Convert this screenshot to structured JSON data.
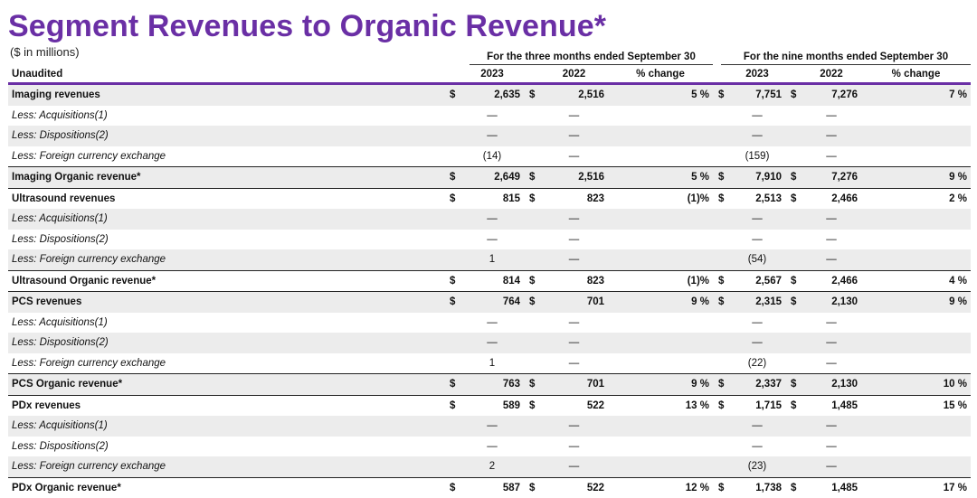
{
  "header": {
    "title": "Segment Revenues to Organic Revenue*",
    "subtitle": "($ in millions)",
    "group_three": "For the three months ended September 30",
    "group_nine": "For the nine months ended September 30",
    "unaudited": "Unaudited",
    "col_2023": "2023",
    "col_2022": "2022",
    "col_pct": "% change"
  },
  "rows": [
    {
      "label": "Imaging revenues",
      "d1": "$",
      "v1": "2,635",
      "d2": "$",
      "v2": "2,516",
      "p1": "5 %",
      "d3": "$",
      "v3": "7,751",
      "d4": "$",
      "v4": "7,276",
      "p2": "7 %"
    },
    {
      "label": "Less: Acquisitions(1)",
      "v1": "—",
      "v2": "—",
      "v3": "—",
      "v4": "—"
    },
    {
      "label": "Less: Dispositions(2)",
      "v1": "—",
      "v2": "—",
      "v3": "—",
      "v4": "—"
    },
    {
      "label": "Less: Foreign currency exchange",
      "v1": "(14)",
      "v2": "—",
      "v3": "(159)",
      "v4": "—"
    },
    {
      "label": "Imaging Organic revenue*",
      "d1": "$",
      "v1": "2,649",
      "d2": "$",
      "v2": "2,516",
      "p1": "5 %",
      "d3": "$",
      "v3": "7,910",
      "d4": "$",
      "v4": "7,276",
      "p2": "9 %"
    },
    {
      "label": "Ultrasound revenues",
      "d1": "$",
      "v1": "815",
      "d2": "$",
      "v2": "823",
      "p1": "(1)%",
      "d3": "$",
      "v3": "2,513",
      "d4": "$",
      "v4": "2,466",
      "p2": "2 %"
    },
    {
      "label": "Less: Acquisitions(1)",
      "v1": "—",
      "v2": "—",
      "v3": "—",
      "v4": "—"
    },
    {
      "label": "Less: Dispositions(2)",
      "v1": "—",
      "v2": "—",
      "v3": "—",
      "v4": "—"
    },
    {
      "label": "Less: Foreign currency exchange",
      "v1": "1",
      "v2": "—",
      "v3": "(54)",
      "v4": "—"
    },
    {
      "label": "Ultrasound Organic revenue*",
      "d1": "$",
      "v1": "814",
      "d2": "$",
      "v2": "823",
      "p1": "(1)%",
      "d3": "$",
      "v3": "2,567",
      "d4": "$",
      "v4": "2,466",
      "p2": "4 %"
    },
    {
      "label": "PCS revenues",
      "d1": "$",
      "v1": "764",
      "d2": "$",
      "v2": "701",
      "p1": "9 %",
      "d3": "$",
      "v3": "2,315",
      "d4": "$",
      "v4": "2,130",
      "p2": "9 %"
    },
    {
      "label": "Less: Acquisitions(1)",
      "v1": "—",
      "v2": "—",
      "v3": "—",
      "v4": "—"
    },
    {
      "label": "Less: Dispositions(2)",
      "v1": "—",
      "v2": "—",
      "v3": "—",
      "v4": "—"
    },
    {
      "label": "Less: Foreign currency exchange",
      "v1": "1",
      "v2": "—",
      "v3": "(22)",
      "v4": "—"
    },
    {
      "label": "PCS Organic revenue*",
      "d1": "$",
      "v1": "763",
      "d2": "$",
      "v2": "701",
      "p1": "9 %",
      "d3": "$",
      "v3": "2,337",
      "d4": "$",
      "v4": "2,130",
      "p2": "10 %"
    },
    {
      "label": "PDx revenues",
      "d1": "$",
      "v1": "589",
      "d2": "$",
      "v2": "522",
      "p1": "13 %",
      "d3": "$",
      "v3": "1,715",
      "d4": "$",
      "v4": "1,485",
      "p2": "15 %"
    },
    {
      "label": "Less: Acquisitions(1)",
      "v1": "—",
      "v2": "—",
      "v3": "—",
      "v4": "—"
    },
    {
      "label": "Less: Dispositions(2)",
      "v1": "—",
      "v2": "—",
      "v3": "—",
      "v4": "—"
    },
    {
      "label": "Less: Foreign currency exchange",
      "v1": "2",
      "v2": "—",
      "v3": "(23)",
      "v4": "—"
    },
    {
      "label": "PDx Organic revenue*",
      "d1": "$",
      "v1": "587",
      "d2": "$",
      "v2": "522",
      "p1": "12 %",
      "d3": "$",
      "v3": "1,738",
      "d4": "$",
      "v4": "1,485",
      "p2": "17 %"
    }
  ]
}
